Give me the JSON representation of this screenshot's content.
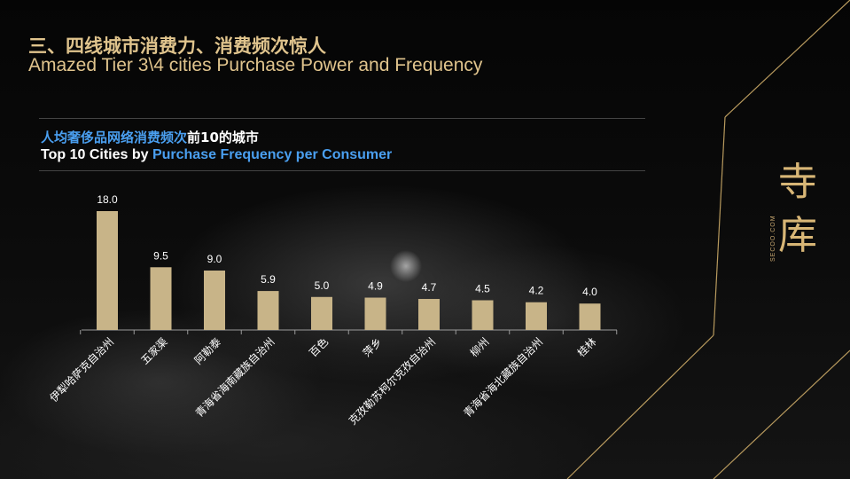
{
  "slide": {
    "title_cn": "三、四线城市消费力、消费频次惊人",
    "title_en": "Amazed Tier 3\\4 cities Purchase Power and Frequency"
  },
  "chart_title": {
    "cn_highlight": "人均奢侈品网络消费频次",
    "cn_rest": "前10的城市",
    "en_prefix": "Top 10 Cities by ",
    "en_highlight": "Purchase Frequency per Consumer"
  },
  "logo": {
    "mark": "寺库",
    "wordmark": "SECOO.COM"
  },
  "colors": {
    "bar": "#c8b488",
    "title_gold": "#e0c48d",
    "highlight_blue": "#4a9ff0",
    "line_gold": "#b89a5e"
  },
  "chart_data": {
    "type": "bar",
    "categories": [
      "伊犁哈萨克自治州",
      "五家渠",
      "阿勒泰",
      "青海省海南藏族自治州",
      "百色",
      "萍乡",
      "克孜勒苏柯尔克孜自治州",
      "柳州",
      "青海省海北藏族自治州",
      "桂林"
    ],
    "values": [
      18.0,
      9.5,
      9.0,
      5.9,
      5.0,
      4.9,
      4.7,
      4.5,
      4.2,
      4.0
    ],
    "value_labels": [
      "18.0",
      "9.5",
      "9.0",
      "5.9",
      "5.0",
      "4.9",
      "4.7",
      "4.5",
      "4.2",
      "4.0"
    ],
    "ylim": [
      0,
      18.0
    ],
    "grid": false,
    "legend": "none"
  }
}
